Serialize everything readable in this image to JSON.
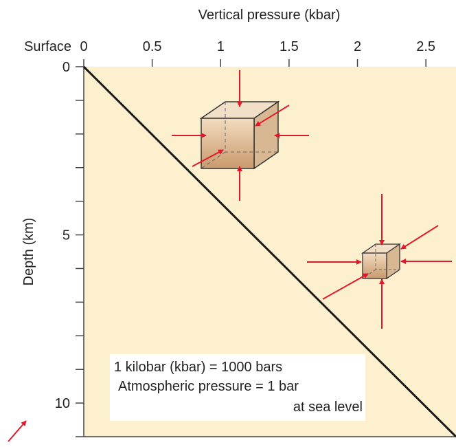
{
  "chart_data": {
    "type": "line",
    "x_label": "Vertical pressure (kbar)",
    "y_label": "Depth (km)",
    "surface_label": "Surface",
    "xlim": [
      0,
      2.72
    ],
    "xticks": [
      0,
      0.5,
      1.0,
      1.5,
      2.0,
      2.5
    ],
    "ylim": [
      0,
      11
    ],
    "yticks": [
      0,
      5,
      10
    ],
    "yminor_ticks": [
      1,
      2,
      3,
      4,
      6,
      7,
      8,
      9,
      11
    ],
    "x": [
      0,
      2.72
    ],
    "y": [
      0,
      11
    ],
    "color": "#1a1a1a",
    "annotations": [
      "1 kilobar (kbar) = 1000 bars",
      "Atmospheric pressure = 1 bar",
      "at sea level"
    ]
  }
}
